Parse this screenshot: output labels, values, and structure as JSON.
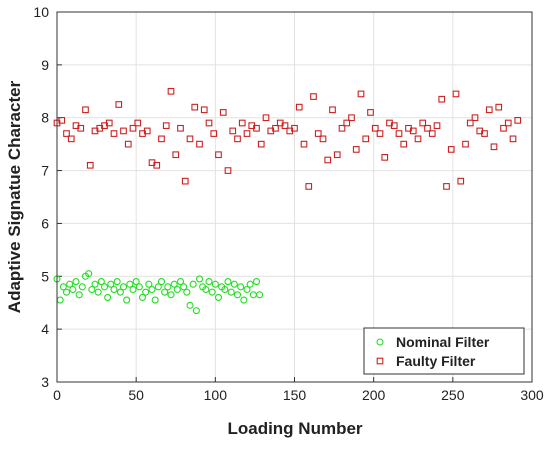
{
  "chart_data": {
    "type": "scatter",
    "xlabel": "Loading Number",
    "ylabel": "Adaptive Signatue Character",
    "xlim": [
      0,
      300
    ],
    "xticks": [
      0,
      50,
      100,
      150,
      200,
      250,
      300
    ],
    "ylim": [
      3,
      10
    ],
    "yticks": [
      3,
      4,
      5,
      6,
      7,
      8,
      9,
      10
    ],
    "grid": true,
    "legend": "lower right",
    "series": [
      {
        "name": "Nominal Filter",
        "color": "#22dd22",
        "marker": "circle",
        "x": [
          0,
          2,
          4,
          6,
          8,
          10,
          12,
          14,
          16,
          18,
          20,
          22,
          24,
          26,
          28,
          30,
          32,
          34,
          36,
          38,
          40,
          42,
          44,
          46,
          48,
          50,
          52,
          54,
          56,
          58,
          60,
          62,
          64,
          66,
          68,
          70,
          72,
          74,
          76,
          78,
          80,
          82,
          84,
          86,
          88,
          90,
          92,
          94,
          96,
          98,
          100,
          102,
          104,
          106,
          108,
          110,
          112,
          114,
          116,
          118,
          120,
          122,
          124,
          126,
          128
        ],
        "values": [
          4.95,
          4.55,
          4.8,
          4.7,
          4.85,
          4.75,
          4.9,
          4.65,
          4.8,
          5.0,
          5.05,
          4.75,
          4.85,
          4.7,
          4.9,
          4.8,
          4.6,
          4.85,
          4.75,
          4.9,
          4.7,
          4.8,
          4.55,
          4.85,
          4.75,
          4.9,
          4.8,
          4.6,
          4.7,
          4.85,
          4.75,
          4.55,
          4.8,
          4.9,
          4.7,
          4.8,
          4.65,
          4.85,
          4.75,
          4.9,
          4.8,
          4.7,
          4.45,
          4.85,
          4.35,
          4.95,
          4.8,
          4.75,
          4.9,
          4.7,
          4.85,
          4.6,
          4.8,
          4.75,
          4.9,
          4.7,
          4.85,
          4.65,
          4.8,
          4.55,
          4.75,
          4.85,
          4.65,
          4.9,
          4.65
        ]
      },
      {
        "name": "Faulty Filter",
        "color": "#cc2222",
        "marker": "square",
        "x": [
          0,
          3,
          6,
          9,
          12,
          15,
          18,
          21,
          24,
          27,
          30,
          33,
          36,
          39,
          42,
          45,
          48,
          51,
          54,
          57,
          60,
          63,
          66,
          69,
          72,
          75,
          78,
          81,
          84,
          87,
          90,
          93,
          96,
          99,
          102,
          105,
          108,
          111,
          114,
          117,
          120,
          123,
          126,
          129,
          132,
          135,
          138,
          141,
          144,
          147,
          150,
          153,
          156,
          159,
          162,
          165,
          168,
          171,
          174,
          177,
          180,
          183,
          186,
          189,
          192,
          195,
          198,
          201,
          204,
          207,
          210,
          213,
          216,
          219,
          222,
          225,
          228,
          231,
          234,
          237,
          240,
          243,
          246,
          249,
          252,
          255,
          258,
          261,
          264,
          267,
          270,
          273,
          276,
          279,
          282,
          285,
          288,
          291
        ],
        "values": [
          7.9,
          7.95,
          7.7,
          7.6,
          7.85,
          7.8,
          8.15,
          7.1,
          7.75,
          7.8,
          7.85,
          7.9,
          7.7,
          8.25,
          7.75,
          7.5,
          7.8,
          7.9,
          7.7,
          7.75,
          7.15,
          7.1,
          7.6,
          7.85,
          8.5,
          7.3,
          7.8,
          6.8,
          7.6,
          8.2,
          7.5,
          8.15,
          7.9,
          7.7,
          7.3,
          8.1,
          7.0,
          7.75,
          7.6,
          7.9,
          7.7,
          7.85,
          7.8,
          7.5,
          8.0,
          7.75,
          7.8,
          7.9,
          7.85,
          7.75,
          7.8,
          8.2,
          7.5,
          6.7,
          8.4,
          7.7,
          7.6,
          7.2,
          8.15,
          7.3,
          7.8,
          7.9,
          8.0,
          7.4,
          8.45,
          7.6,
          8.1,
          7.8,
          7.7,
          7.25,
          7.9,
          7.85,
          7.7,
          7.5,
          7.8,
          7.75,
          7.6,
          7.9,
          7.8,
          7.7,
          7.85,
          8.35,
          6.7,
          7.4,
          8.45,
          6.8,
          7.5,
          7.9,
          8.0,
          7.75,
          7.7,
          8.15,
          7.45,
          8.2,
          7.8,
          7.9,
          7.6,
          7.95
        ]
      }
    ]
  }
}
